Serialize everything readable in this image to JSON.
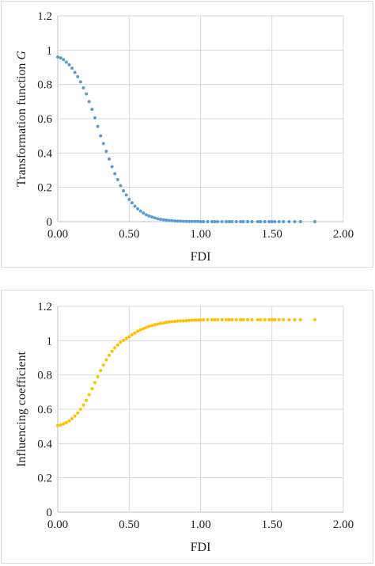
{
  "chart_data": [
    {
      "type": "scatter",
      "xlabel": "FDI",
      "ylabel": "Transformation function",
      "ylabel_italic": "G",
      "xlim": [
        0,
        2
      ],
      "ylim": [
        0,
        1.2
      ],
      "x_ticks": [
        "0.00",
        "0.50",
        "1.00",
        "1.50",
        "2.00"
      ],
      "y_ticks": [
        "0",
        "0.2",
        "0.4",
        "0.6",
        "0.8",
        "1",
        "1.2"
      ],
      "grid": true,
      "color": "#5b9bd5",
      "series": [
        {
          "x": [
            0.0,
            0.02,
            0.04,
            0.06,
            0.08,
            0.1,
            0.12,
            0.14,
            0.16,
            0.18,
            0.2,
            0.22,
            0.24,
            0.26,
            0.28,
            0.3,
            0.32,
            0.34,
            0.36,
            0.38,
            0.4,
            0.42,
            0.44,
            0.46,
            0.48,
            0.5,
            0.52,
            0.54,
            0.56,
            0.58,
            0.6,
            0.62,
            0.64,
            0.66,
            0.68,
            0.7,
            0.72,
            0.74,
            0.76,
            0.78,
            0.8,
            0.82,
            0.84,
            0.86,
            0.88,
            0.9,
            0.92,
            0.94,
            0.96,
            0.98,
            1.0,
            1.02,
            1.05,
            1.08,
            1.1,
            1.12,
            1.15,
            1.18,
            1.2,
            1.22,
            1.25,
            1.28,
            1.3,
            1.33,
            1.36,
            1.4,
            1.42,
            1.45,
            1.48,
            1.5,
            1.52,
            1.55,
            1.58,
            1.62,
            1.66,
            1.7,
            1.8
          ],
          "y": [
            0.96,
            0.955,
            0.945,
            0.93,
            0.915,
            0.895,
            0.87,
            0.845,
            0.815,
            0.78,
            0.745,
            0.7,
            0.655,
            0.605,
            0.555,
            0.5,
            0.455,
            0.41,
            0.365,
            0.32,
            0.28,
            0.245,
            0.21,
            0.18,
            0.155,
            0.13,
            0.11,
            0.09,
            0.075,
            0.062,
            0.05,
            0.04,
            0.033,
            0.027,
            0.022,
            0.017,
            0.014,
            0.011,
            0.009,
            0.007,
            0.006,
            0.004,
            0.003,
            0.003,
            0.002,
            0.002,
            0.001,
            0.001,
            0.001,
            0.001,
            0.0,
            0.0,
            0.0,
            0.0,
            0.0,
            0.0,
            0.0,
            0.0,
            0.0,
            0.0,
            0.0,
            0.0,
            0.0,
            0.0,
            0.0,
            0.0,
            0.0,
            0.0,
            0.0,
            0.0,
            0.0,
            0.0,
            0.0,
            0.0,
            0.0,
            0.0,
            0.0
          ]
        }
      ]
    },
    {
      "type": "scatter",
      "xlabel": "FDI",
      "ylabel": "Influencing coefficient",
      "xlim": [
        0,
        2
      ],
      "ylim": [
        0,
        1.2
      ],
      "x_ticks": [
        "0.00",
        "0.50",
        "1.00",
        "1.50",
        "2.00"
      ],
      "y_ticks": [
        "0",
        "0.2",
        "0.4",
        "0.6",
        "0.8",
        "1",
        "1.2"
      ],
      "grid": true,
      "color": "#ffc000",
      "series": [
        {
          "x": [
            0.0,
            0.02,
            0.04,
            0.06,
            0.08,
            0.1,
            0.12,
            0.14,
            0.16,
            0.18,
            0.2,
            0.22,
            0.24,
            0.26,
            0.28,
            0.3,
            0.32,
            0.34,
            0.36,
            0.38,
            0.4,
            0.42,
            0.44,
            0.46,
            0.48,
            0.5,
            0.52,
            0.54,
            0.56,
            0.58,
            0.6,
            0.62,
            0.64,
            0.66,
            0.68,
            0.7,
            0.72,
            0.74,
            0.76,
            0.78,
            0.8,
            0.82,
            0.84,
            0.86,
            0.88,
            0.9,
            0.92,
            0.94,
            0.96,
            0.98,
            1.0,
            1.02,
            1.05,
            1.08,
            1.1,
            1.12,
            1.15,
            1.18,
            1.2,
            1.22,
            1.25,
            1.28,
            1.3,
            1.33,
            1.36,
            1.4,
            1.42,
            1.45,
            1.48,
            1.5,
            1.52,
            1.55,
            1.58,
            1.62,
            1.66,
            1.7,
            1.8
          ],
          "y": [
            0.505,
            0.508,
            0.515,
            0.522,
            0.532,
            0.545,
            0.56,
            0.578,
            0.6,
            0.625,
            0.652,
            0.685,
            0.72,
            0.755,
            0.79,
            0.825,
            0.858,
            0.888,
            0.915,
            0.938,
            0.958,
            0.975,
            0.99,
            1.002,
            1.013,
            1.023,
            1.035,
            1.045,
            1.055,
            1.063,
            1.07,
            1.077,
            1.083,
            1.088,
            1.093,
            1.097,
            1.1,
            1.103,
            1.106,
            1.108,
            1.11,
            1.112,
            1.114,
            1.115,
            1.116,
            1.117,
            1.118,
            1.119,
            1.12,
            1.12,
            1.121,
            1.121,
            1.122,
            1.122,
            1.122,
            1.122,
            1.122,
            1.122,
            1.122,
            1.122,
            1.122,
            1.122,
            1.122,
            1.122,
            1.122,
            1.122,
            1.122,
            1.122,
            1.122,
            1.122,
            1.122,
            1.122,
            1.122,
            1.122,
            1.122,
            1.122,
            1.122
          ]
        }
      ]
    }
  ]
}
